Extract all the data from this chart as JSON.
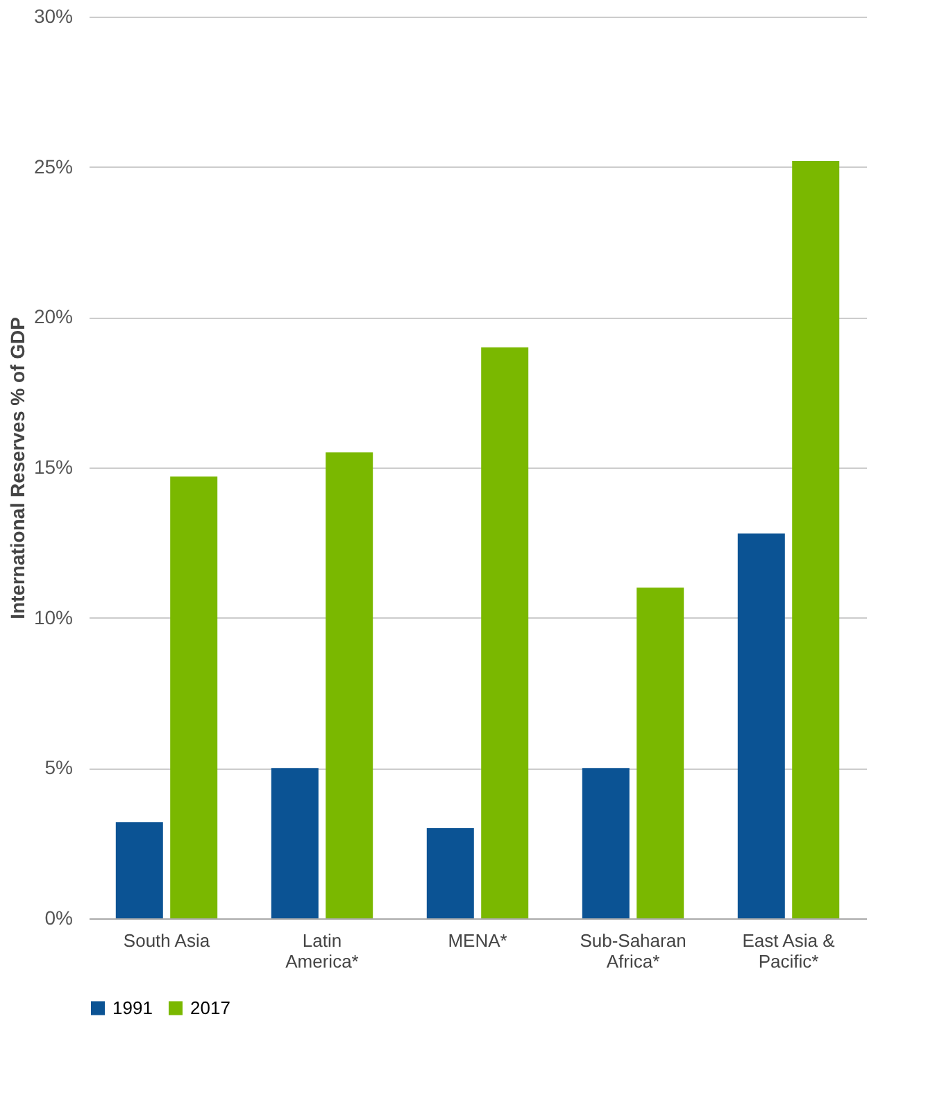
{
  "chart_data": {
    "type": "bar",
    "ylabel": "International Reserves % of GDP",
    "categories": [
      "South Asia",
      "Latin America*",
      "MENA*",
      "Sub-Saharan Africa*",
      "East Asia & Pacific*"
    ],
    "series": [
      {
        "name": "1991",
        "color": "#0b5394",
        "values": [
          3.2,
          5.0,
          3.0,
          5.0,
          12.8
        ]
      },
      {
        "name": "2017",
        "color": "#7ab800",
        "values": [
          14.7,
          15.5,
          19.0,
          11.0,
          25.2
        ]
      }
    ],
    "ylim": [
      0,
      30
    ],
    "yticks": [
      {
        "value": 0,
        "label": "0%"
      },
      {
        "value": 5,
        "label": "5%"
      },
      {
        "value": 10,
        "label": "10%"
      },
      {
        "value": 15,
        "label": "15%"
      },
      {
        "value": 20,
        "label": "20%"
      },
      {
        "value": 25,
        "label": "25%"
      },
      {
        "value": 30,
        "label": "30%"
      }
    ],
    "grid": "y",
    "legend": "bottom left"
  }
}
